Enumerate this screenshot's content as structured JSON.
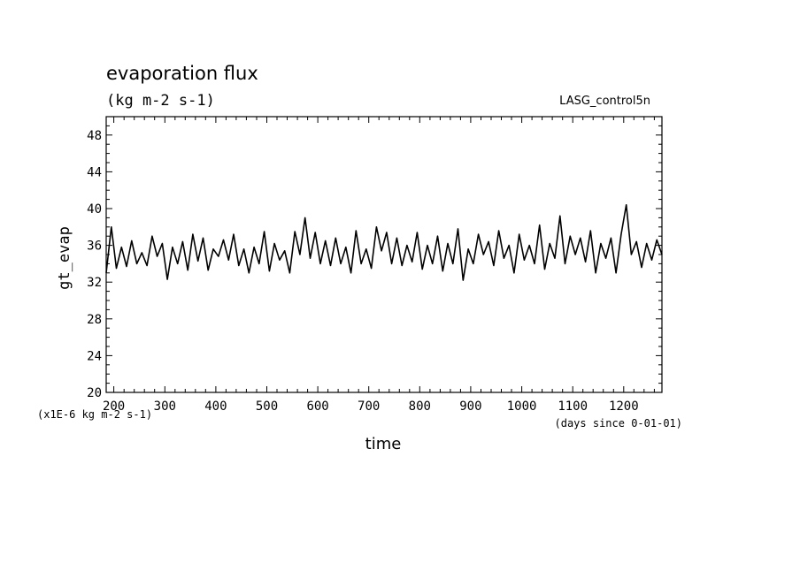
{
  "chart_data": {
    "type": "line",
    "title": "evaporation flux",
    "subtitle": "(kg m-2 s-1)",
    "run_label": "LASG_control5n",
    "ylabel": "gt_evap",
    "xlabel": "time",
    "y_unit_note": "(x1E-6 kg m-2 s-1)",
    "x_unit_note": "(days since 0-01-01)",
    "xlim": [
      185,
      1275
    ],
    "ylim": [
      20,
      50
    ],
    "xticks": [
      200,
      300,
      400,
      500,
      600,
      700,
      800,
      900,
      1000,
      1100,
      1200
    ],
    "yticks": [
      20,
      24,
      28,
      32,
      36,
      40,
      44,
      48
    ],
    "grid": false,
    "series": [
      {
        "x": [
          185,
          195,
          205,
          215,
          225,
          235,
          245,
          255,
          265,
          275,
          285,
          295,
          305,
          315,
          325,
          335,
          345,
          355,
          365,
          375,
          385,
          395,
          405,
          415,
          425,
          435,
          445,
          455,
          465,
          475,
          485,
          495,
          505,
          515,
          525,
          535,
          545,
          555,
          565,
          575,
          585,
          595,
          605,
          615,
          625,
          635,
          645,
          655,
          665,
          675,
          685,
          695,
          705,
          715,
          725,
          735,
          745,
          755,
          765,
          775,
          785,
          795,
          805,
          815,
          825,
          835,
          845,
          855,
          865,
          875,
          885,
          895,
          905,
          915,
          925,
          935,
          945,
          955,
          965,
          975,
          985,
          995,
          1005,
          1015,
          1025,
          1035,
          1045,
          1055,
          1065,
          1075,
          1085,
          1095,
          1105,
          1115,
          1125,
          1135,
          1145,
          1155,
          1165,
          1175,
          1185,
          1195,
          1205,
          1215,
          1225,
          1235,
          1245,
          1255,
          1265,
          1275
        ],
        "y": [
          33.0,
          38.0,
          33.5,
          35.8,
          33.7,
          36.5,
          34.0,
          35.2,
          33.8,
          37.0,
          34.8,
          36.2,
          32.3,
          35.8,
          34.0,
          36.4,
          33.3,
          37.2,
          34.3,
          36.8,
          33.3,
          35.6,
          34.8,
          36.6,
          34.4,
          37.2,
          33.8,
          35.6,
          33.0,
          35.8,
          34.0,
          37.5,
          33.2,
          36.2,
          34.4,
          35.4,
          33.0,
          37.5,
          35.0,
          39.0,
          34.6,
          37.4,
          34.0,
          36.5,
          33.8,
          36.8,
          34.0,
          35.8,
          33.0,
          37.6,
          34.0,
          35.6,
          33.5,
          38.0,
          35.4,
          37.4,
          34.0,
          36.8,
          33.8,
          36.0,
          34.2,
          37.4,
          33.4,
          36.0,
          34.0,
          37.0,
          33.2,
          36.2,
          34.0,
          37.8,
          32.2,
          35.6,
          34.0,
          37.2,
          35.0,
          36.4,
          33.8,
          37.6,
          34.6,
          36.0,
          33.0,
          37.2,
          34.4,
          36.0,
          34.0,
          38.2,
          33.4,
          36.2,
          34.6,
          39.2,
          34.0,
          37.0,
          35.0,
          36.8,
          34.2,
          37.6,
          33.0,
          36.2,
          34.6,
          36.8,
          33.0,
          37.2,
          40.4,
          35.0,
          36.4,
          33.6,
          36.2,
          34.4,
          36.6,
          35.0
        ]
      }
    ]
  }
}
